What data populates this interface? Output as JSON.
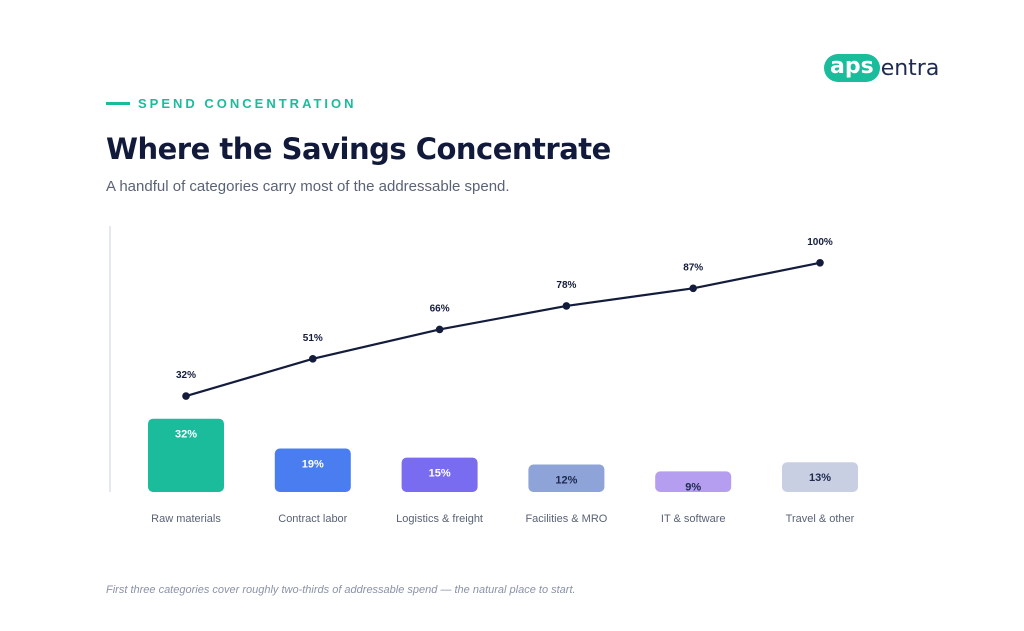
{
  "brand": {
    "logo_pill": "aps",
    "logo_rest": "entra"
  },
  "header": {
    "eyebrow": "SPEND CONCENTRATION",
    "title": "Where the Savings Concentrate",
    "subtitle": "A handful of categories carry most of the addressable spend."
  },
  "footnote": "First three categories cover roughly two-thirds of addressable spend — the natural place to start.",
  "colors": {
    "accent": "#1abc9c",
    "line": "#141c3c",
    "bars": [
      "#1abc9c",
      "#4a7ef0",
      "#7a6cf0",
      "#8ea3d8",
      "#b59df0",
      "#c9cfe3"
    ],
    "bar_labels": [
      "#ffffff",
      "#ffffff",
      "#ffffff",
      "#1e2a4f",
      "#1e2a4f",
      "#1e2a4f"
    ]
  },
  "chart_data": {
    "type": "bar",
    "categories": [
      "Raw materials",
      "Contract labor",
      "Logistics & freight",
      "Facilities & MRO",
      "IT & software",
      "Travel & other"
    ],
    "series": [
      {
        "type": "bar",
        "values": [
          32,
          19,
          15,
          12,
          9,
          13
        ],
        "labels": [
          "32%",
          "19%",
          "15%",
          "12%",
          "9%",
          "13%"
        ]
      },
      {
        "type": "line",
        "values": [
          32,
          51,
          66,
          78,
          87,
          100
        ],
        "labels": [
          "32%",
          "51%",
          "66%",
          "78%",
          "87%",
          "100%"
        ]
      }
    ],
    "ylim": [
      0,
      100
    ],
    "grid": false
  }
}
